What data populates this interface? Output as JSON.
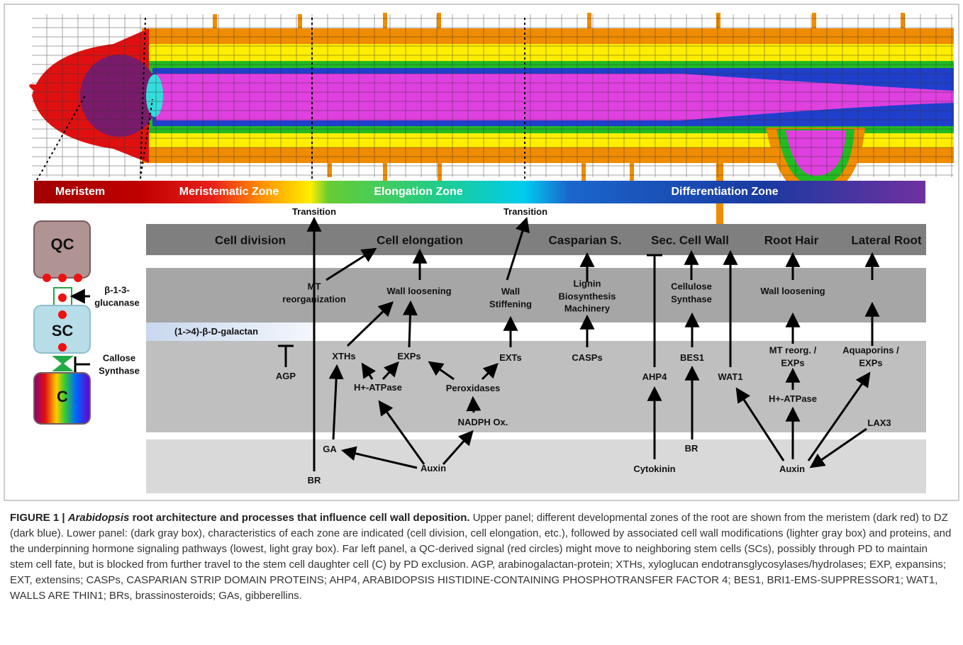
{
  "zones": [
    "Meristem",
    "Meristematic Zone",
    "Elongation Zone",
    "Differentiation Zone"
  ],
  "transitions": [
    "Transition",
    "Transition"
  ],
  "processes": [
    "Cell division",
    "Cell elongation",
    "Casparian S.",
    "Sec. Cell Wall",
    "Root Hair",
    "Lateral Root"
  ],
  "modifications": [
    "MT reorganization",
    "Wall loosening",
    "Wall Stiffening",
    "Lignin Biosynthesis Machinery",
    "Cellulose Synthase",
    "Wall loosening"
  ],
  "galactan": "(1->4)-β-D-galactan",
  "proteins": [
    "AGP",
    "XTHs",
    "EXPs",
    "EXTs",
    "CASPs",
    "H+-ATPase",
    "Peroxidases",
    "NADPH Ox.",
    "AHP4",
    "BES1",
    "WAT1",
    "MT reorg. / EXPs",
    "Aquaporins / EXPs",
    "H+-ATPase",
    "LAX3"
  ],
  "hormones": [
    "GA",
    "Auxin",
    "BR",
    "Cytokinin",
    "BR",
    "Auxin"
  ],
  "stem_cells": {
    "qc": "QC",
    "sc": "SC",
    "c": "C",
    "glucanase": "β-1-3-glucanase",
    "callose": "Callose Synthase"
  },
  "caption": {
    "label": "FIGURE 1 |",
    "species": "Arabidopsis",
    "title": "root architecture and processes that influence cell wall deposition.",
    "body": "Upper panel; different developmental zones of the root are shown from the meristem (dark red) to DZ (dark blue). Lower panel: (dark gray box), characteristics of each zone are indicated (cell division, cell elongation, etc.), followed by associated cell wall modifications (lighter gray box) and proteins, and the underpinning hormone signaling pathways (lowest, light gray box). Far left panel, a QC-derived signal (red circles) might move to neighboring stem cells (SCs), possibly through PD to maintain stem cell fate, but is blocked from further travel to the stem cell daughter cell (C) by PD exclusion. AGP, arabinogalactan-protein; XTHs, xyloglucan endotransglycosylases/hydrolases; EXP, expansins; EXT, extensins; CASPs, CASPARIAN STRIP DOMAIN PROTEINS; AHP4, ARABIDOPSIS HISTIDINE-CONTAINING PHOSPHOTRANSFER FACTOR 4; BES1, BRI1-EMS-SUPPRESSOR1; WAT1, WALLS ARE THIN1; BRs, brassinosteroids; GAs, gibberellins."
  }
}
